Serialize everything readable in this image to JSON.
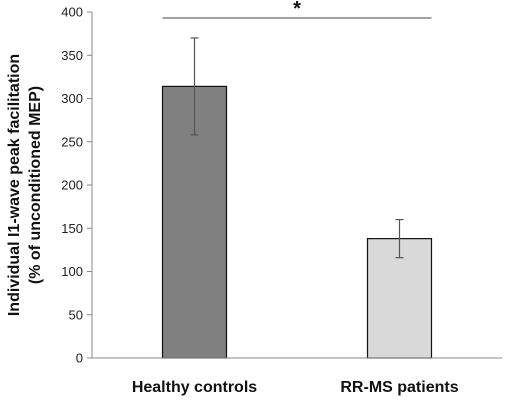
{
  "chart_data": {
    "type": "bar",
    "categories": [
      "Healthy controls",
      "RR-MS patients"
    ],
    "values": [
      314,
      138
    ],
    "error_lower": [
      258,
      116
    ],
    "error_upper": [
      370,
      160
    ],
    "bar_colors": [
      "#808080",
      "#d9d9d9"
    ],
    "ylabel_line1": "Individual I1-wave peak facilitation",
    "ylabel_line2": "(% of unconditioned MEP)",
    "ylim": [
      0,
      400
    ],
    "yticks": [
      "0",
      "50",
      "100",
      "150",
      "200",
      "250",
      "300",
      "350",
      "400"
    ],
    "significance": {
      "between": [
        0,
        1
      ],
      "y": 393,
      "label": "*"
    },
    "grid": false,
    "legend": "none"
  }
}
